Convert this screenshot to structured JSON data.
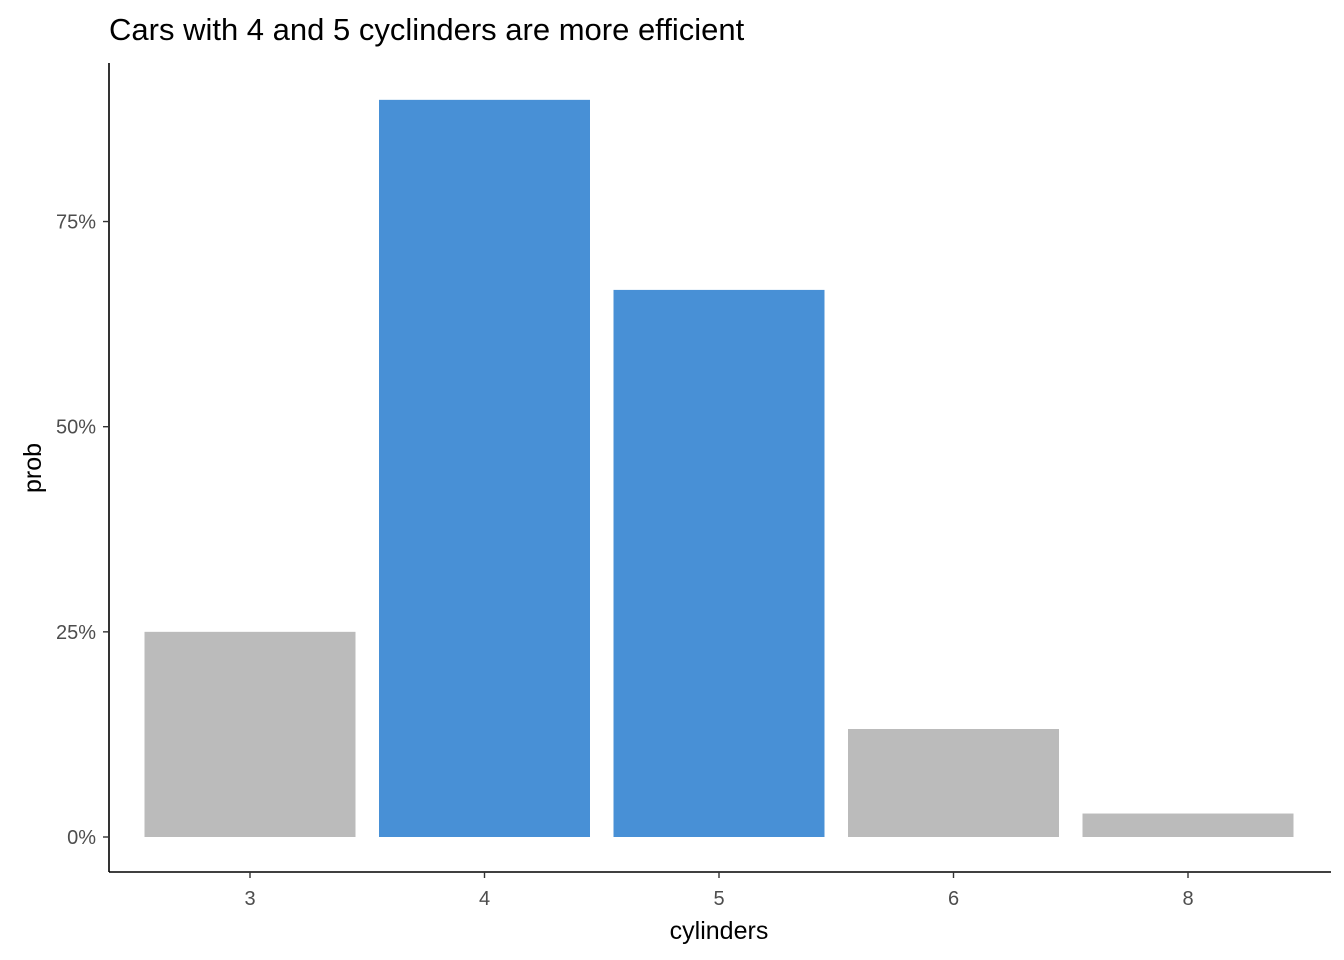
{
  "chart_data": {
    "type": "bar",
    "title": "Cars with 4 and 5 cyclinders are more efficient",
    "xlabel": "cylinders",
    "ylabel": "prob",
    "categories": [
      "3",
      "4",
      "5",
      "6",
      "8"
    ],
    "values": [
      0.25,
      0.8983,
      0.6667,
      0.1316,
      0.0286
    ],
    "highlighted": [
      false,
      true,
      true,
      false,
      false
    ],
    "y_ticks": [
      0,
      0.25,
      0.5,
      0.75
    ],
    "y_tick_labels": [
      "0%",
      "25%",
      "50%",
      "75%"
    ],
    "ylim": [
      0,
      0.9432
    ],
    "grid": false,
    "legend": "none",
    "colors": {
      "highlight": "#4890d6",
      "default": "#bbbbbb",
      "axis": "#000000",
      "tick_text": "#4d4d4d"
    }
  }
}
